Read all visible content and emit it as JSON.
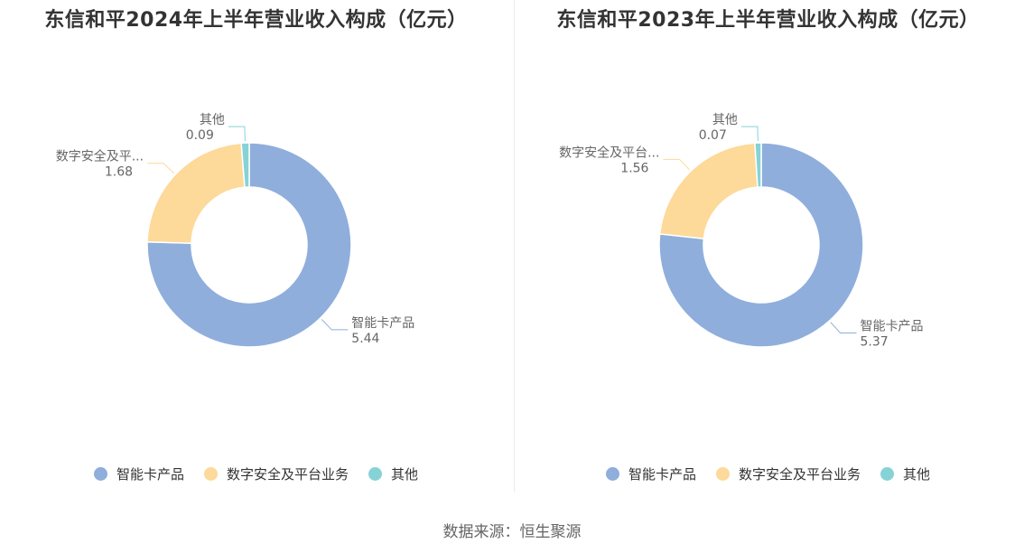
{
  "colors": {
    "smart_card": "#8FAEDC",
    "digital_security": "#FDD99A",
    "other": "#86D3D6"
  },
  "legend": [
    "智能卡产品",
    "数字安全及平台业务",
    "其他"
  ],
  "source": "数据来源：恒生聚源",
  "chart_data": [
    {
      "type": "pie",
      "title": "东信和平2024年上半年营业收入构成（亿元）",
      "categories": [
        "智能卡产品",
        "数字安全及平台业务",
        "其他"
      ],
      "display_labels": [
        "智能卡产品",
        "数字安全及平...",
        "其他"
      ],
      "values": [
        5.44,
        1.68,
        0.09
      ],
      "value_labels": [
        "5.44",
        "1.68",
        "0.09"
      ]
    },
    {
      "type": "pie",
      "title": "东信和平2023年上半年营业收入构成（亿元）",
      "categories": [
        "智能卡产品",
        "数字安全及平台业务",
        "其他"
      ],
      "display_labels": [
        "智能卡产品",
        "数字安全及平台...",
        "其他"
      ],
      "values": [
        5.37,
        1.56,
        0.07
      ],
      "value_labels": [
        "5.37",
        "1.56",
        "0.07"
      ]
    }
  ]
}
